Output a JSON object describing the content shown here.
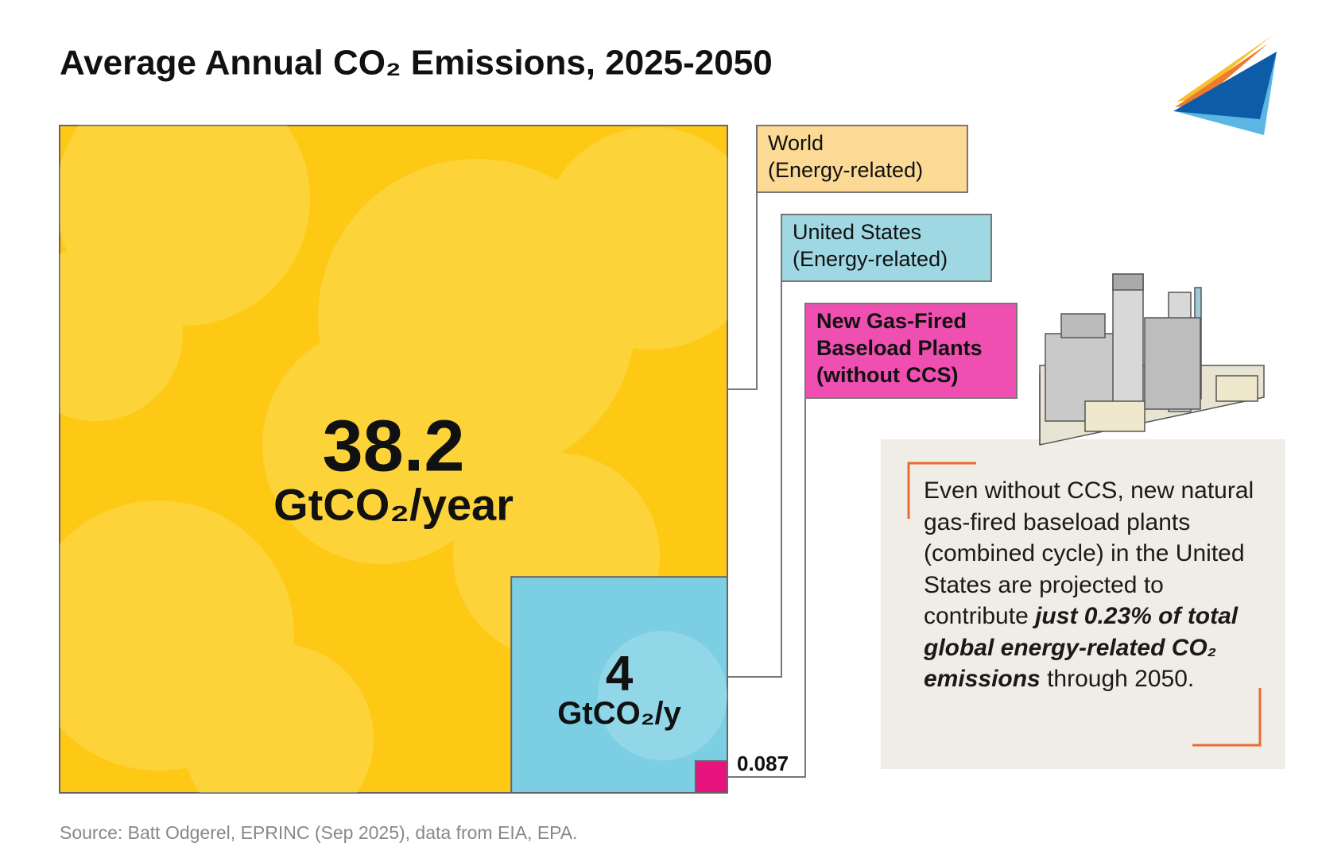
{
  "chart_data": {
    "type": "nested-squares",
    "title": "Average Annual CO₂ Emissions, 2025-2050",
    "series": [
      {
        "name": [
          "World",
          "(Energy-related)"
        ],
        "color": "#fdc915",
        "label_color": "#fcd995",
        "values": [
          38.2
        ],
        "unit": "GtCO₂/year"
      },
      {
        "name": [
          "United States",
          "(Energy-related)"
        ],
        "color": "#7ccfe3",
        "label_color": "#9fd8e3",
        "values": [
          4
        ],
        "unit": "GtCO₂/y"
      },
      {
        "name": [
          "New Gas-Fired",
          "Baseload Plants",
          "(without CCS)"
        ],
        "color": "#e6127e",
        "label_color": "#ee4fb0",
        "values": [
          0.087
        ]
      }
    ],
    "note": {
      "text_before": "Even without CCS, new natural gas-fired baseload plants (combined cycle) in the United States are projected to contribute",
      "emphasis": "just 0.23% of total global energy-related CO₂ emissions",
      "text_after": "through 2050."
    },
    "source": "Source: Batt Odgerel, EPRINC (Sep 2025), data from EIA, EPA."
  }
}
